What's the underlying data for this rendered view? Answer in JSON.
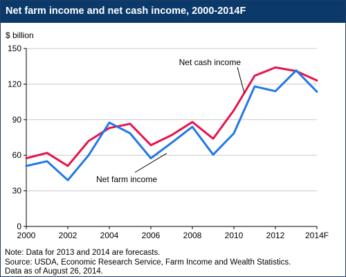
{
  "title": "Net farm income and net cash income, 2000-2014F",
  "colors": {
    "title_bg": "#0b3a6a",
    "farm": "#1f78e8",
    "cash": "#e8134a"
  },
  "notes": [
    "Note: Data for 2013 and 2014 are forecasts.",
    "Source: USDA, Economic Research Service, Farm Income and Wealth Statistics.",
    "Data as of August 26, 2014."
  ],
  "chart_data": {
    "type": "line",
    "ylabel": "$ billion",
    "ylim": [
      0,
      150
    ],
    "yticks": [
      0,
      30,
      60,
      90,
      120,
      150
    ],
    "xticks": [
      "2000",
      "2002",
      "2004",
      "2006",
      "2008",
      "2010",
      "2012",
      "2014F"
    ],
    "x": [
      2000,
      2001,
      2002,
      2003,
      2004,
      2005,
      2006,
      2007,
      2008,
      2009,
      2010,
      2011,
      2012,
      2013,
      2014
    ],
    "grid": true,
    "series": [
      {
        "name": "Net cash income",
        "color": "#e8134a",
        "values": [
          57.5,
          62,
          51,
          72,
          83,
          86.5,
          68.5,
          77,
          88,
          74,
          98,
          127,
          134,
          131,
          123
        ]
      },
      {
        "name": "Net farm income",
        "color": "#1f78e8",
        "values": [
          51,
          55,
          39,
          60,
          87.5,
          78.5,
          57.5,
          70.5,
          84,
          60.5,
          78.5,
          118,
          114,
          131.5,
          113.5
        ]
      }
    ]
  }
}
